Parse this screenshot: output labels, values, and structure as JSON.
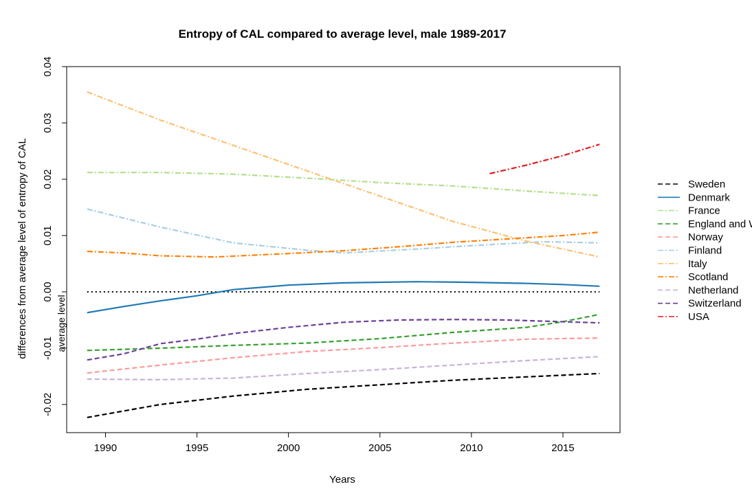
{
  "chart_data": {
    "type": "line",
    "title": "Entropy of CAL compared to average level, male 1989-2017",
    "xlabel": "Years",
    "ylabel": "differences from average level of entropy of CAL",
    "xlim": [
      1989,
      2017
    ],
    "ylim": [
      -0.025,
      0.04
    ],
    "x_ticks": [
      1990,
      1995,
      2000,
      2005,
      2010,
      2015
    ],
    "y_ticks": [
      -0.02,
      -0.01,
      0.0,
      0.01,
      0.02,
      0.03,
      0.04
    ],
    "x_tick_labels": [
      "1990",
      "1995",
      "2000",
      "2005",
      "2010",
      "2015"
    ],
    "y_tick_labels": [
      "-0.02",
      "-0.01",
      "0.00",
      "0.01",
      "0.02",
      "0.03",
      "0.04"
    ],
    "reference_line": {
      "y": 0.0,
      "label": "average level",
      "color": "#000000"
    },
    "legend_position": "right",
    "grid": false,
    "series": [
      {
        "name": "Sweden",
        "color": "#000000",
        "dash": "dash",
        "x": [
          1989,
          1993,
          1997,
          2001,
          2005,
          2009,
          2013,
          2017
        ],
        "y": [
          -0.0223,
          -0.02,
          -0.0185,
          -0.0173,
          -0.0165,
          -0.0157,
          -0.0151,
          -0.0145
        ]
      },
      {
        "name": "Denmark",
        "color": "#1f78b4",
        "dash": "solid",
        "x": [
          1989,
          1991,
          1993,
          1995,
          1997,
          2000,
          2003,
          2007,
          2010,
          2013,
          2015,
          2017
        ],
        "y": [
          -0.0037,
          -0.0026,
          -0.0016,
          -0.0007,
          0.0004,
          0.0012,
          0.0016,
          0.0018,
          0.0017,
          0.0015,
          0.0013,
          0.001
        ]
      },
      {
        "name": "France",
        "color": "#b2df8a",
        "dash": "dashdot",
        "x": [
          1989,
          1993,
          1997,
          2001,
          2005,
          2009,
          2013,
          2017
        ],
        "y": [
          0.0212,
          0.0212,
          0.0209,
          0.0202,
          0.0194,
          0.0188,
          0.0179,
          0.0171
        ]
      },
      {
        "name": "England and Wales",
        "color": "#33a02c",
        "dash": "dash",
        "x": [
          1989,
          1993,
          1997,
          2001,
          2005,
          2009,
          2013,
          2015,
          2017
        ],
        "y": [
          -0.0104,
          -0.01,
          -0.0095,
          -0.0091,
          -0.0083,
          -0.0072,
          -0.0063,
          -0.0053,
          -0.004
        ]
      },
      {
        "name": "Norway",
        "color": "#fb9a99",
        "dash": "dash",
        "x": [
          1989,
          1993,
          1997,
          2001,
          2005,
          2009,
          2013,
          2017
        ],
        "y": [
          -0.0144,
          -0.013,
          -0.0117,
          -0.0106,
          -0.0099,
          -0.0091,
          -0.0084,
          -0.0082
        ]
      },
      {
        "name": "Finland",
        "color": "#a6cee3",
        "dash": "dashdot",
        "x": [
          1989,
          1993,
          1997,
          2001,
          2003,
          2007,
          2011,
          2014,
          2017
        ],
        "y": [
          0.0147,
          0.0115,
          0.0087,
          0.0074,
          0.0069,
          0.0076,
          0.0084,
          0.0089,
          0.0087
        ]
      },
      {
        "name": "Italy",
        "color": "#fdbf6f",
        "dash": "dashdot",
        "x": [
          1989,
          1993,
          1997,
          2001,
          2005,
          2009,
          2013,
          2017
        ],
        "y": [
          0.0355,
          0.0305,
          0.026,
          0.0215,
          0.017,
          0.0125,
          0.009,
          0.0062
        ]
      },
      {
        "name": "Scotland",
        "color": "#ff7f00",
        "dash": "dashdot",
        "x": [
          1989,
          1991,
          1993,
          1996,
          2000,
          2003,
          2006,
          2009,
          2012,
          2015,
          2017
        ],
        "y": [
          0.0072,
          0.0069,
          0.0064,
          0.0062,
          0.0068,
          0.0073,
          0.008,
          0.0088,
          0.0094,
          0.01,
          0.0106
        ]
      },
      {
        "name": "Netherland",
        "color": "#cab2d6",
        "dash": "dash",
        "x": [
          1989,
          1993,
          1997,
          2001,
          2005,
          2009,
          2013,
          2017
        ],
        "y": [
          -0.0155,
          -0.0156,
          -0.0153,
          -0.0145,
          -0.0138,
          -0.013,
          -0.0122,
          -0.0115
        ]
      },
      {
        "name": "Switzerland",
        "color": "#6a3d9a",
        "dash": "dash",
        "x": [
          1989,
          1991,
          1993,
          1995,
          1997,
          2000,
          2003,
          2006,
          2009,
          2012,
          2015,
          2017
        ],
        "y": [
          -0.0121,
          -0.011,
          -0.0092,
          -0.0084,
          -0.0074,
          -0.0063,
          -0.0054,
          -0.005,
          -0.0049,
          -0.005,
          -0.0053,
          -0.0055
        ]
      },
      {
        "name": "USA",
        "color": "#e31a1c",
        "dash": "dashdot",
        "x": [
          2011,
          2013,
          2015,
          2017
        ],
        "y": [
          0.021,
          0.0225,
          0.0242,
          0.0262
        ]
      }
    ]
  }
}
